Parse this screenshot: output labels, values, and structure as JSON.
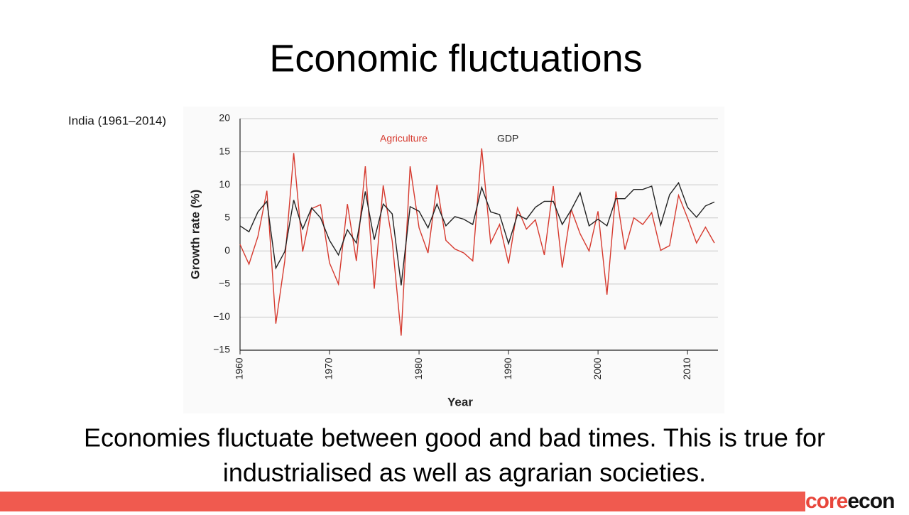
{
  "title": "Economic fluctuations",
  "chart_data": {
    "type": "line",
    "subtitle": "India (1961–2014)",
    "xlabel": "Year",
    "ylabel": "Growth rate (%)",
    "x": [
      1960,
      1961,
      1962,
      1963,
      1964,
      1965,
      1966,
      1967,
      1968,
      1969,
      1970,
      1971,
      1972,
      1973,
      1974,
      1975,
      1976,
      1977,
      1978,
      1979,
      1980,
      1981,
      1982,
      1983,
      1984,
      1985,
      1986,
      1987,
      1988,
      1989,
      1990,
      1991,
      1992,
      1993,
      1994,
      1995,
      1996,
      1997,
      1998,
      1999,
      2000,
      2001,
      2002,
      2003,
      2004,
      2005,
      2006,
      2007,
      2008,
      2009,
      2010,
      2011,
      2012,
      2013
    ],
    "series": [
      {
        "name": "Agriculture",
        "color": "#d63a2f",
        "values": [
          1.0,
          -2.0,
          2.2,
          9.1,
          -11.0,
          -1.5,
          14.8,
          -0.1,
          6.4,
          7.0,
          -1.8,
          -5.0,
          7.1,
          -1.5,
          12.8,
          -5.7,
          9.9,
          1.5,
          -12.8,
          12.8,
          3.5,
          -0.3,
          10.0,
          1.6,
          0.3,
          -0.3,
          -1.5,
          15.5,
          1.2,
          4.0,
          -1.9,
          6.5,
          3.3,
          4.7,
          -0.6,
          9.8,
          -2.5,
          6.3,
          2.6,
          0.0,
          6.0,
          -6.6,
          9.0,
          0.2,
          5.0,
          4.0,
          5.8,
          0.1,
          0.8,
          8.4,
          5.0,
          1.2,
          3.6,
          1.2
        ]
      },
      {
        "name": "GDP",
        "color": "#222222",
        "values": [
          3.8,
          2.9,
          5.9,
          7.5,
          -2.6,
          -0.1,
          7.7,
          3.3,
          6.5,
          5.0,
          1.6,
          -0.6,
          3.2,
          1.2,
          9.0,
          1.7,
          7.1,
          5.6,
          -5.2,
          6.7,
          6.0,
          3.5,
          7.1,
          3.8,
          5.2,
          4.8,
          4.0,
          9.6,
          5.9,
          5.5,
          1.1,
          5.5,
          4.8,
          6.6,
          7.5,
          7.5,
          4.0,
          6.2,
          8.8,
          3.8,
          4.8,
          3.8,
          7.9,
          7.9,
          9.3,
          9.3,
          9.8,
          3.9,
          8.5,
          10.3,
          6.6,
          5.1,
          6.8,
          7.4
        ]
      }
    ],
    "xlim": [
      1960,
      2013.4
    ],
    "xticks": [
      1960,
      1970,
      1980,
      1990,
      2000,
      2010
    ],
    "ylim": [
      -15,
      20
    ],
    "yticks": [
      {
        "value": -15,
        "label": "−15"
      },
      {
        "value": -10,
        "label": "−10"
      },
      {
        "value": -5,
        "label": "−5"
      },
      0,
      5,
      10,
      15,
      20
    ],
    "grid": true
  },
  "caption": [
    "Economies fluctuate between good and bad times. This is true for",
    "industrialised as well as agrarian societies."
  ],
  "logo": {
    "part1": "core",
    "part2": "econ"
  }
}
